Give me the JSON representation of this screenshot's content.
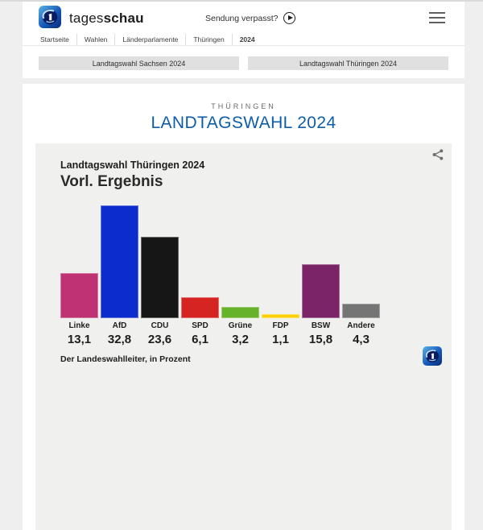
{
  "header": {
    "brand": {
      "regular": "tages",
      "bold": "schau"
    },
    "watch_link": "Sendung verpasst?",
    "breadcrumb": [
      "Startseite",
      "Wahlen",
      "Länderparlamente",
      "Thüringen",
      "2024"
    ]
  },
  "nav_buttons": [
    "Landtagswahl Sachsen 2024",
    "Landtagswahl Thüringen 2024"
  ],
  "page": {
    "kicker": "THÜRINGEN",
    "title": "LANDTAGSWAHL 2024"
  },
  "chart_data": {
    "type": "bar",
    "title": "Landtagswahl Thüringen 2024",
    "subtitle": "Vorl. Ergebnis",
    "categories": [
      "Linke",
      "AfD",
      "CDU",
      "SPD",
      "Grüne",
      "FDP",
      "BSW",
      "Andere"
    ],
    "values": [
      13.1,
      32.8,
      23.6,
      6.1,
      3.2,
      1.1,
      15.8,
      4.3
    ],
    "value_labels": [
      "13,1",
      "32,8",
      "23,6",
      "6,1",
      "3,2",
      "1,1",
      "15,8",
      "4,3"
    ],
    "colors": [
      "#bf3375",
      "#0d2ccc",
      "#161616",
      "#d52422",
      "#66b22b",
      "#fccf08",
      "#7c2468",
      "#757575"
    ],
    "ylim": [
      0,
      35
    ],
    "unit": "Prozent",
    "legend": "none",
    "grid": false,
    "source": "Der Landeswahlleiter, in Prozent"
  },
  "colors": {
    "accent_blue": "#0e5da9",
    "card_bg": "#f0f0ee",
    "page_bg": "#efefef"
  }
}
